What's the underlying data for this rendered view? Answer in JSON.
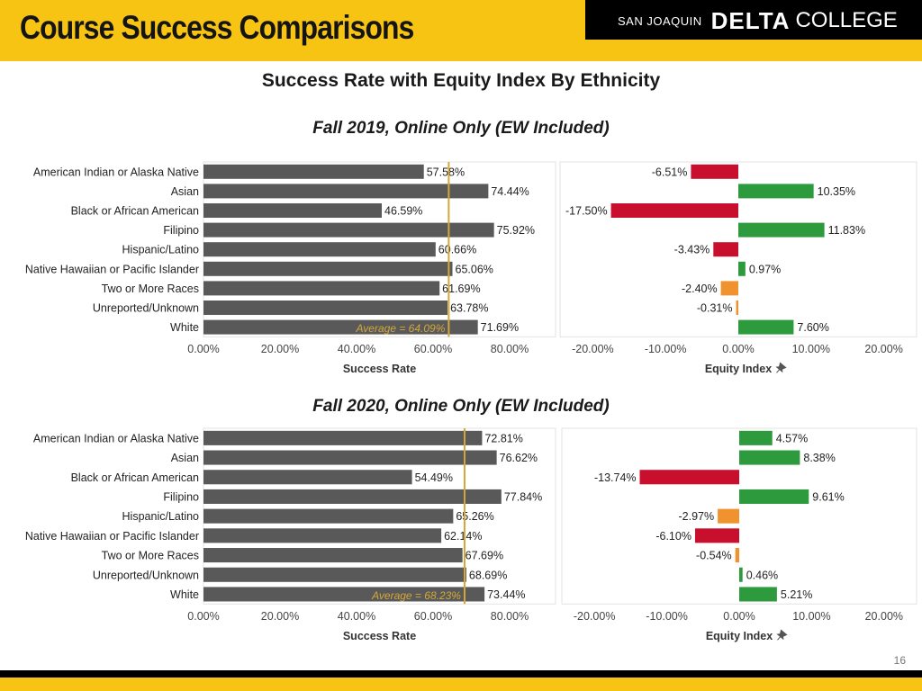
{
  "header": {
    "title": "Course Success Comparisons",
    "brand": {
      "small": "SAN JOAQUIN",
      "delta": "DELTA",
      "college": "COLLEGE"
    }
  },
  "chart_title": "Success Rate with Equity Index By Ethnicity",
  "page_number": "16",
  "colors": {
    "bar": "#595959",
    "average_line": "#d4a73a",
    "positive": "#2e9a3e",
    "slight_negative": "#f0922e",
    "negative": "#c8102e",
    "header_yellow": "#f7c413"
  },
  "chart_data": [
    {
      "type": "bar",
      "subtitle": "Fall 2019, Online Only (EW Included)",
      "categories": [
        "American Indian or Alaska Native",
        "Asian",
        "Black or African American",
        "Filipino",
        "Hispanic/Latino",
        "Native Hawaiian or Pacific Islander",
        "Two or More Races",
        "Unreported/Unknown",
        "White"
      ],
      "success_rate": {
        "values": [
          57.58,
          74.44,
          46.59,
          75.92,
          60.66,
          65.06,
          61.69,
          63.78,
          71.69
        ],
        "labels": [
          "57.58%",
          "74.44%",
          "46.59%",
          "75.92%",
          "60.66%",
          "65.06%",
          "61.69%",
          "63.78%",
          "71.69%"
        ],
        "average": 64.09,
        "average_label": "Average = 64.09%",
        "xlabel": "Success Rate",
        "xlim": [
          0,
          92
        ],
        "ticks": [
          "0.00%",
          "20.00%",
          "40.00%",
          "60.00%",
          "80.00%"
        ],
        "tick_values": [
          0,
          20,
          40,
          60,
          80
        ]
      },
      "equity_index": {
        "values": [
          -6.51,
          10.35,
          -17.5,
          11.83,
          -3.43,
          0.97,
          -2.4,
          -0.31,
          7.6
        ],
        "labels": [
          "-6.51%",
          "10.35%",
          "-17.50%",
          "11.83%",
          "-3.43%",
          "0.97%",
          "-2.40%",
          "-0.31%",
          "7.60%"
        ],
        "xlabel": "Equity Index",
        "xlim": [
          -24.5,
          24.5
        ],
        "ticks": [
          "-20.00%",
          "-10.00%",
          "0.00%",
          "10.00%",
          "20.00%"
        ],
        "tick_values": [
          -20,
          -10,
          0,
          10,
          20
        ]
      }
    },
    {
      "type": "bar",
      "subtitle": "Fall 2020, Online Only (EW Included)",
      "categories": [
        "American Indian or Alaska Native",
        "Asian",
        "Black or African American",
        "Filipino",
        "Hispanic/Latino",
        "Native Hawaiian or Pacific Islander",
        "Two or More Races",
        "Unreported/Unknown",
        "White"
      ],
      "success_rate": {
        "values": [
          72.81,
          76.62,
          54.49,
          77.84,
          65.26,
          62.14,
          67.69,
          68.69,
          73.44
        ],
        "labels": [
          "72.81%",
          "76.62%",
          "54.49%",
          "77.84%",
          "65.26%",
          "62.14%",
          "67.69%",
          "68.69%",
          "73.44%"
        ],
        "average": 68.23,
        "average_label": "Average = 68.23%",
        "xlabel": "Success Rate",
        "xlim": [
          0,
          92
        ],
        "ticks": [
          "0.00%",
          "20.00%",
          "40.00%",
          "60.00%",
          "80.00%"
        ],
        "tick_values": [
          0,
          20,
          40,
          60,
          80
        ]
      },
      "equity_index": {
        "values": [
          4.57,
          8.38,
          -13.74,
          9.61,
          -2.97,
          -6.1,
          -0.54,
          0.46,
          5.21
        ],
        "labels": [
          "4.57%",
          "8.38%",
          "-13.74%",
          "9.61%",
          "-2.97%",
          "-6.10%",
          "-0.54%",
          "0.46%",
          "5.21%"
        ],
        "xlabel": "Equity Index",
        "xlim": [
          -24.5,
          24.5
        ],
        "ticks": [
          "-20.00%",
          "-10.00%",
          "0.00%",
          "10.00%",
          "20.00%"
        ],
        "tick_values": [
          -20,
          -10,
          0,
          10,
          20
        ]
      }
    }
  ]
}
